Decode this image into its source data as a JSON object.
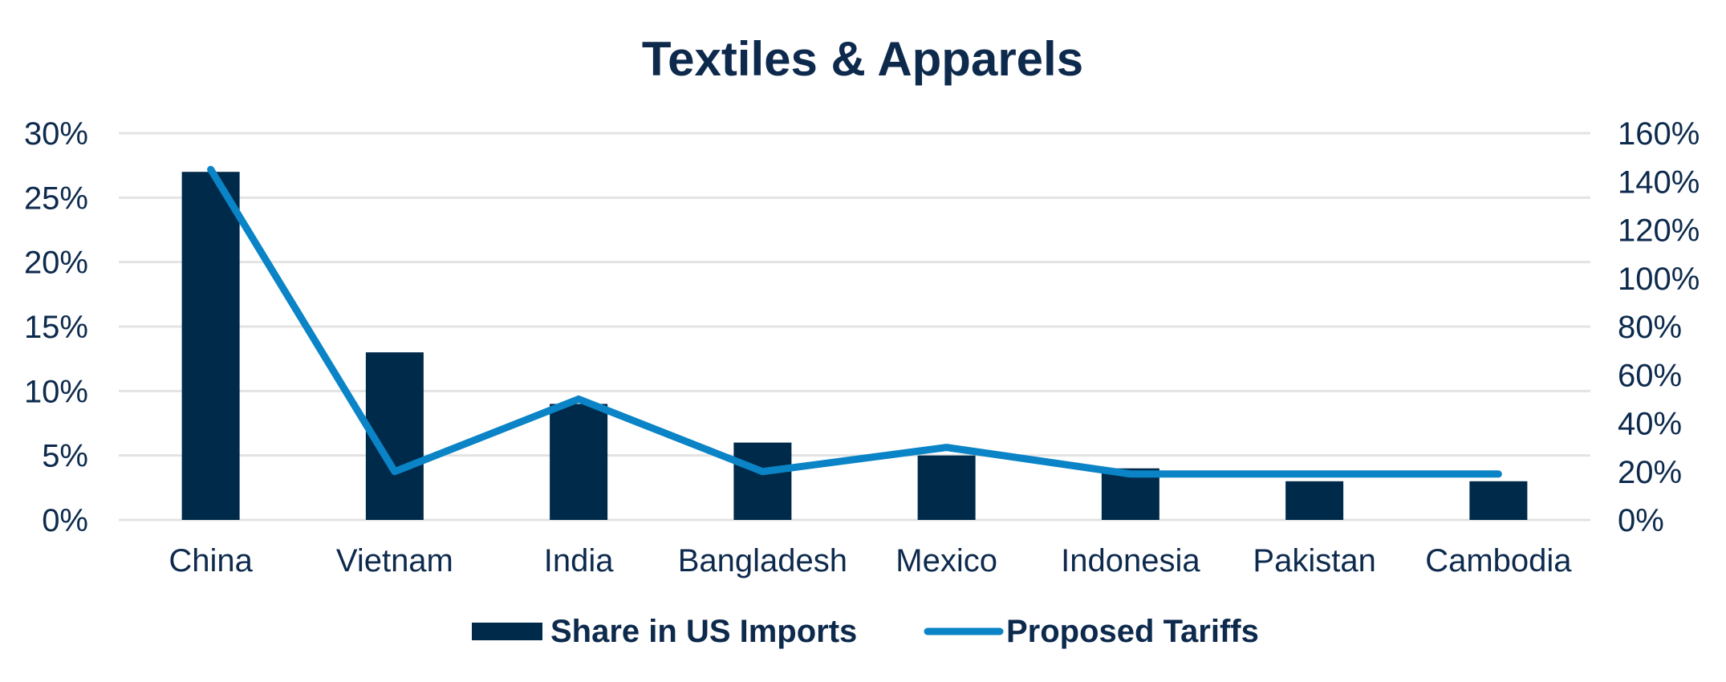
{
  "chart_data": {
    "type": "bar",
    "title": "Textiles & Apparels",
    "categories": [
      "China",
      "Vietnam",
      "India",
      "Bangladesh",
      "Mexico",
      "Indonesia",
      "Pakistan",
      "Cambodia"
    ],
    "series": [
      {
        "name": "Share in US Imports",
        "kind": "bar",
        "axis": "left",
        "values": [
          27,
          13,
          9,
          6,
          5,
          4,
          3,
          3
        ]
      },
      {
        "name": "Proposed Tariffs",
        "kind": "line",
        "axis": "right",
        "values": [
          145,
          20,
          50,
          20,
          30,
          19,
          19,
          19
        ]
      }
    ],
    "y_left": {
      "ylim": [
        0,
        30
      ],
      "ticks": [
        "0%",
        "5%",
        "10%",
        "15%",
        "20%",
        "25%",
        "30%"
      ]
    },
    "y_right": {
      "ylim": [
        0,
        160
      ],
      "ticks": [
        "0%",
        "20%",
        "40%",
        "60%",
        "80%",
        "100%",
        "120%",
        "140%",
        "160%"
      ]
    },
    "grid": true,
    "legend": "bottom",
    "colors": {
      "bar": "#002a4a",
      "line": "#0a84c6",
      "text": "#0d2a4d",
      "grid": "#e3e3e3"
    }
  }
}
